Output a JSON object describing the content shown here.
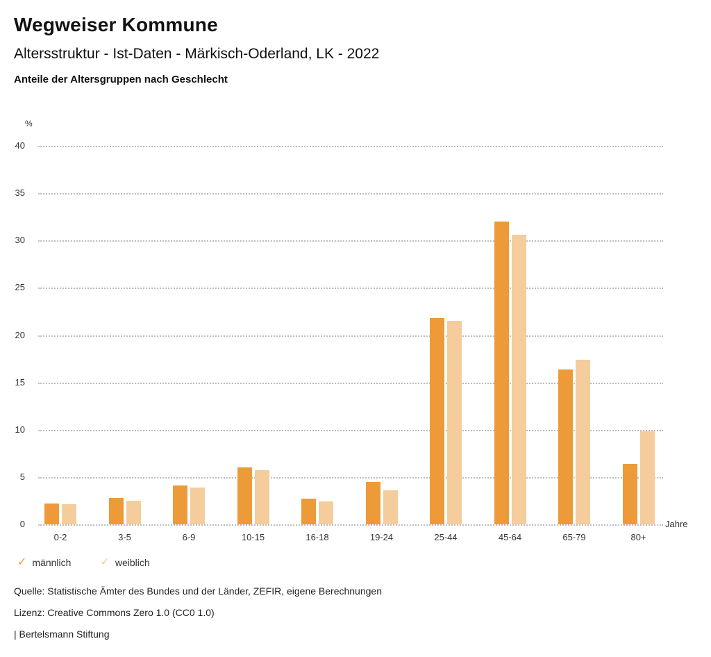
{
  "header": {
    "title": "Wegweiser Kommune",
    "subtitle": "Altersstruktur - Ist-Daten - Märkisch-Oderland, LK - 2022",
    "chart_heading": "Anteile der Altersgruppen nach Geschlecht"
  },
  "chart_data": {
    "type": "bar",
    "title": "Anteile der Altersgruppen nach Geschlecht",
    "categories": [
      "0-2",
      "3-5",
      "6-9",
      "10-15",
      "16-18",
      "19-24",
      "25-44",
      "45-64",
      "65-79",
      "80+"
    ],
    "series": [
      {
        "name": "männlich",
        "color": "#ED9A38",
        "values": [
          2.2,
          2.8,
          4.1,
          6.0,
          2.7,
          4.5,
          21.8,
          32.0,
          16.4,
          6.4
        ]
      },
      {
        "name": "weiblich",
        "color": "#F5CC9B",
        "values": [
          2.1,
          2.5,
          3.9,
          5.7,
          2.4,
          3.6,
          21.5,
          30.6,
          17.4,
          9.8
        ]
      }
    ],
    "ylabel": "%",
    "xlabel": "Jahre",
    "ylim": [
      0,
      40
    ],
    "yticks": [
      0,
      5,
      10,
      15,
      20,
      25,
      30,
      35,
      40
    ],
    "grid": "horizontal-dotted",
    "legend_position": "bottom-left"
  },
  "legend": {
    "check_glyph": "✓"
  },
  "footer": {
    "source": "Quelle: Statistische Ämter des Bundes und der Länder, ZEFIR, eigene Berechnungen",
    "license": "Lizenz: Creative Commons Zero 1.0 (CC0 1.0)",
    "attribution": "| Bertelsmann Stiftung"
  },
  "colors": {
    "male_bar": "#ED9A38",
    "female_bar": "#F5CC9B",
    "gridline": "#BCBCBC",
    "text_primary": "#111111",
    "text_secondary": "#333333"
  }
}
